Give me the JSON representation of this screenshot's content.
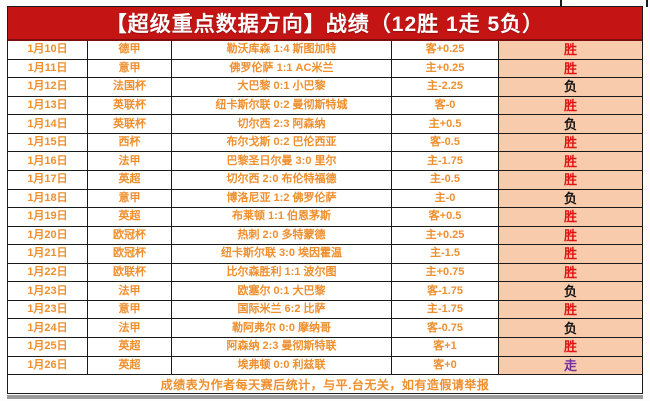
{
  "header": {
    "title": "【超级重点数据方向】战绩（12胜 1走 5负）"
  },
  "colors": {
    "header_bg": "#c41414",
    "header_text": "#ffffff",
    "cell_text_orange": "#ef8f2e",
    "result_column_bg": "#f8cbad",
    "win_text": "#e11414",
    "loss_text": "#141414",
    "push_text": "#7030a0",
    "grid_border": "#1a1a1a"
  },
  "table": {
    "rows": [
      {
        "date": "1月10日",
        "league": "德甲",
        "match": "勒沃库森 1:4 斯图加特",
        "handicap": "客+0.25",
        "result": "胜",
        "result_type": "win"
      },
      {
        "date": "1月11日",
        "league": "意甲",
        "match": "佛罗伦萨 1:1 AC米兰",
        "handicap": "主+0.25",
        "result": "胜",
        "result_type": "win"
      },
      {
        "date": "1月12日",
        "league": "法国杯",
        "match": "大巴黎 0:1 小巴黎",
        "handicap": "主-2.25",
        "result": "负",
        "result_type": "loss"
      },
      {
        "date": "1月13日",
        "league": "英联杯",
        "match": "纽卡斯尔联 0:2 曼彻斯特城",
        "handicap": "客-0",
        "result": "胜",
        "result_type": "win"
      },
      {
        "date": "1月14日",
        "league": "英联杯",
        "match": "切尔西 2:3 阿森纳",
        "handicap": "主+0.5",
        "result": "负",
        "result_type": "loss"
      },
      {
        "date": "1月15日",
        "league": "西杯",
        "match": "布尔戈斯 0:2 巴伦西亚",
        "handicap": "客-0.5",
        "result": "胜",
        "result_type": "win"
      },
      {
        "date": "1月16日",
        "league": "法甲",
        "match": "巴黎圣日尔曼 3:0 里尔",
        "handicap": "主-1.75",
        "result": "胜",
        "result_type": "win"
      },
      {
        "date": "1月17日",
        "league": "英超",
        "match": "切尔西 2:0 布伦特福德",
        "handicap": "主-0.5",
        "result": "胜",
        "result_type": "win"
      },
      {
        "date": "1月18日",
        "league": "意甲",
        "match": "博洛尼亚 1:2 佛罗伦萨",
        "handicap": "主-0",
        "result": "负",
        "result_type": "loss"
      },
      {
        "date": "1月19日",
        "league": "英超",
        "match": "布莱顿 1:1 伯恩茅斯",
        "handicap": "客+0.5",
        "result": "胜",
        "result_type": "win"
      },
      {
        "date": "1月20日",
        "league": "欧冠杯",
        "match": "热刺 2:0 多特蒙德",
        "handicap": "主+0.25",
        "result": "胜",
        "result_type": "win"
      },
      {
        "date": "1月21日",
        "league": "欧冠杯",
        "match": "纽卡斯尔联 3:0 埃因霍温",
        "handicap": "主-1.5",
        "result": "胜",
        "result_type": "win"
      },
      {
        "date": "1月22日",
        "league": "欧联杯",
        "match": "比尔森胜利 1:1 波尔图",
        "handicap": "主+0.75",
        "result": "胜",
        "result_type": "win"
      },
      {
        "date": "1月23日",
        "league": "法甲",
        "match": "欧塞尔 0:1 大巴黎",
        "handicap": "客-1.75",
        "result": "负",
        "result_type": "loss"
      },
      {
        "date": "1月23日",
        "league": "意甲",
        "match": "国际米兰 6:2 比萨",
        "handicap": "主-1.75",
        "result": "胜",
        "result_type": "win"
      },
      {
        "date": "1月24日",
        "league": "法甲",
        "match": "勒阿弗尔 0:0 摩纳哥",
        "handicap": "客-0.75",
        "result": "负",
        "result_type": "loss"
      },
      {
        "date": "1月25日",
        "league": "英超",
        "match": "阿森纳 2:3 曼彻斯特联",
        "handicap": "客+1",
        "result": "胜",
        "result_type": "win"
      },
      {
        "date": "1月26日",
        "league": "英超",
        "match": "埃弗顿 0:0 利兹联",
        "handicap": "客+0",
        "result": "走",
        "result_type": "push"
      }
    ]
  },
  "footer": {
    "note": "成绩表为作者每天赛后统计，与平.台无关，如有造假请举报"
  }
}
